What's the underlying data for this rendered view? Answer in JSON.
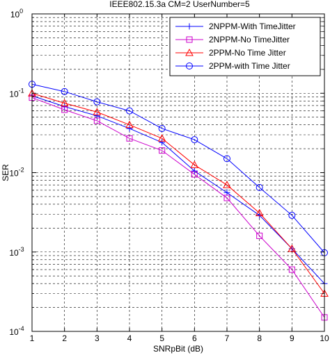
{
  "chart_data": {
    "type": "line",
    "title": "IEEE802.15.3a CM=2 UserNumber=5",
    "xlabel": "SNRpBit (dB)",
    "ylabel": "SER",
    "xlim": [
      1,
      10
    ],
    "ylim": [
      0.0001,
      1
    ],
    "yscale": "log",
    "grid": true,
    "legend_position": "top-right",
    "x_ticks": [
      "1",
      "2",
      "3",
      "4",
      "5",
      "6",
      "7",
      "8",
      "9",
      "10"
    ],
    "y_ticks": [
      {
        "base": "10",
        "exp": "0"
      },
      {
        "base": "10",
        "exp": "-1"
      },
      {
        "base": "10",
        "exp": "-2"
      },
      {
        "base": "10",
        "exp": "-3"
      },
      {
        "base": "10",
        "exp": "-4"
      }
    ],
    "x": [
      1,
      2,
      3,
      4,
      5,
      6,
      7,
      8,
      9,
      10
    ],
    "series": [
      {
        "name": "2NPPM-With TimeJitter",
        "color": "#0000ff",
        "marker": "plus",
        "values": [
          0.093,
          0.068,
          0.052,
          0.036,
          0.024,
          0.0105,
          0.0056,
          0.0029,
          0.0011,
          0.0004
        ]
      },
      {
        "name": "2NPPM-No TimeJitter",
        "color": "#cc00cc",
        "marker": "square",
        "values": [
          0.088,
          0.062,
          0.045,
          0.027,
          0.019,
          0.0095,
          0.0048,
          0.0016,
          0.0006,
          0.00015
        ]
      },
      {
        "name": "2PPM-No Time Jitter",
        "color": "#ff0000",
        "marker": "triangle",
        "values": [
          0.1,
          0.075,
          0.058,
          0.04,
          0.027,
          0.0125,
          0.007,
          0.0031,
          0.0011,
          0.0003
        ]
      },
      {
        "name": "2PPM-with Time Jitter",
        "color": "#0000ff",
        "marker": "circle",
        "values": [
          0.13,
          0.105,
          0.078,
          0.06,
          0.036,
          0.026,
          0.015,
          0.0065,
          0.0029,
          0.00098
        ]
      }
    ]
  }
}
